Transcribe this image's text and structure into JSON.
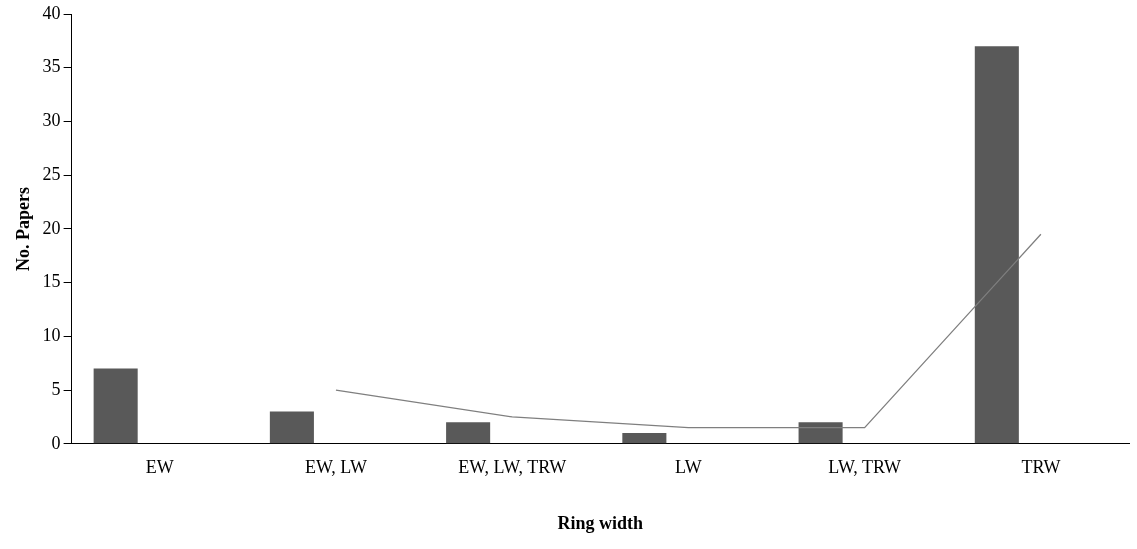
{
  "chart_data": {
    "type": "bar",
    "xlabel": "Ring width",
    "ylabel": "No. Papers",
    "categories": [
      "EW",
      "EW, LW",
      "EW, LW, TRW",
      "LW",
      "LW, TRW",
      "TRW"
    ],
    "series": [
      {
        "color": "#595959",
        "values": [
          7,
          3,
          2,
          1,
          2,
          37
        ]
      },
      {
        "type": "line",
        "color": "#7f7f7f",
        "x": [
          "EW, LW",
          "EW, LW, TRW",
          "LW",
          "LW, TRW",
          "TRW"
        ],
        "values": [
          5,
          2.5,
          1.5,
          1.5,
          19.5
        ],
        "marker": "none",
        "line_style": "solid"
      }
    ],
    "ylim": [
      0,
      40
    ],
    "yticks": [
      0,
      5,
      10,
      15,
      20,
      25,
      30,
      35,
      40
    ],
    "grid": false,
    "legend": false
  }
}
